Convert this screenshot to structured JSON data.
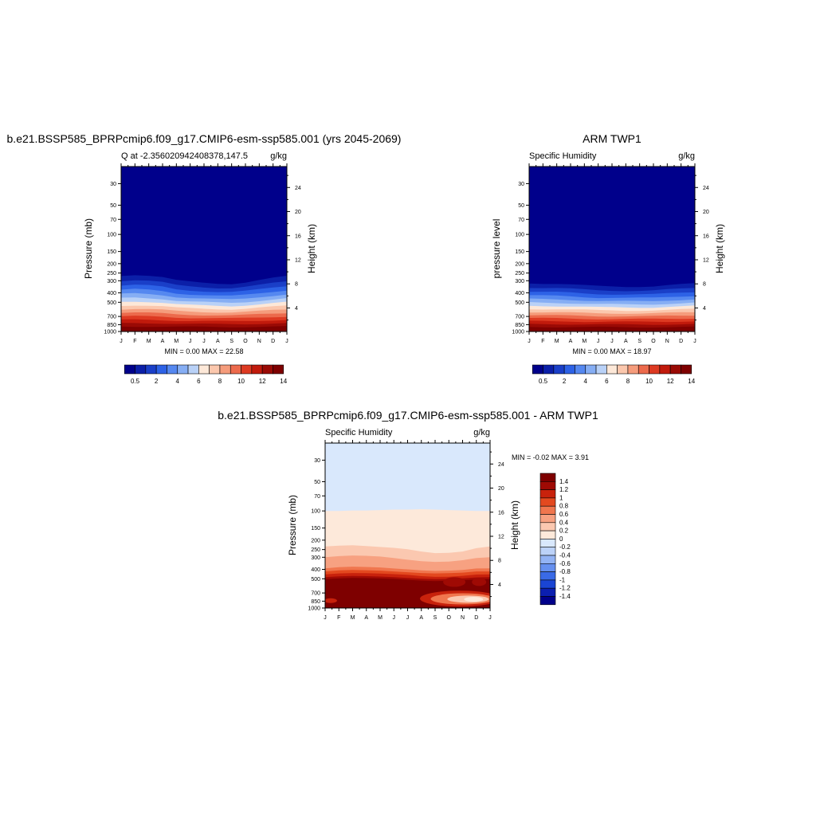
{
  "colors": {
    "abs_palette": [
      "#00008b",
      "#0b1fa8",
      "#1a3fc8",
      "#2d62e6",
      "#5588f0",
      "#86aef4",
      "#b9d1f7",
      "#fde8d8",
      "#fbc7ad",
      "#f59c7c",
      "#ec6a4c",
      "#dd3a22",
      "#c11a0c",
      "#9a0a05",
      "#7e0000"
    ],
    "diff_palette": [
      "#00008b",
      "#0b1fb0",
      "#1a45d4",
      "#3a6ae6",
      "#6690ef",
      "#93b3f4",
      "#bcd2f8",
      "#d9e8fc",
      "#fde9da",
      "#fbc8b0",
      "#f7a181",
      "#f0764e",
      "#e3491f",
      "#c8220c",
      "#9f0a04",
      "#7e0000"
    ],
    "axis": "#000000"
  },
  "panels": {
    "model": {
      "title": "b.e21.BSSP585_BPRPcmip6.f09_g17.CMIP6-esm-ssp585.001 (yrs 2045-2069)",
      "left_string": "Q at -2.356020942408378,147.5",
      "right_string": "g/kg",
      "ylabel": "Pressure (mb)",
      "ylabel_right": "Height (km)",
      "stats": "MIN =   0.00 MAX =  22.58"
    },
    "obs": {
      "title": "ARM TWP1",
      "left_string": "Specific Humidity",
      "right_string": "g/kg",
      "ylabel": "pressure level",
      "ylabel_right": "Height (km)",
      "stats": "MIN =   0.00 MAX =  18.97"
    },
    "diff": {
      "title": "b.e21.BSSP585_BPRPcmip6.f09_g17.CMIP6-esm-ssp585.001 - ARM TWP1",
      "left_string": "Specific Humidity",
      "right_string": "g/kg",
      "ylabel": "Pressure (mb)",
      "ylabel_right": "Height (km)",
      "stats": "MIN =  -0.02 MAX =   3.91"
    }
  },
  "chart_data": [
    {
      "type": "heatmap",
      "title": "b.e21.BSSP585_BPRPcmip6.f09_g17.CMIP6-esm-ssp585.001 (yrs 2045-2069)",
      "ylabel": "Pressure (mb)",
      "ylabel_right": "Height (km)",
      "x_ticks": [
        "J",
        "F",
        "M",
        "A",
        "M",
        "J",
        "J",
        "A",
        "S",
        "O",
        "N",
        "D",
        "J"
      ],
      "y_ticks": [
        30,
        50,
        70,
        100,
        150,
        200,
        250,
        300,
        400,
        500,
        700,
        850,
        1000
      ],
      "y_ticks_right": [
        24,
        20,
        16,
        12,
        8,
        4
      ],
      "ylim": [
        1000,
        20
      ],
      "units": "g/kg",
      "min": 0.0,
      "max": 22.58,
      "colorbar_labels": [
        "0.5",
        "2",
        "4",
        "6",
        "8",
        "10",
        "12",
        "14"
      ],
      "levels": [
        0.5,
        1,
        2,
        3,
        4,
        5,
        6,
        7,
        8,
        9,
        10,
        11,
        12,
        13,
        14
      ],
      "moist_top_pressure": [
        225,
        220,
        225,
        235,
        255,
        265,
        272,
        278,
        280,
        270,
        255,
        240,
        228
      ]
    },
    {
      "type": "heatmap",
      "title": "ARM TWP1",
      "ylabel": "pressure level",
      "ylabel_right": "Height (km)",
      "x_ticks": [
        "J",
        "F",
        "M",
        "A",
        "M",
        "J",
        "J",
        "A",
        "S",
        "O",
        "N",
        "D",
        "J"
      ],
      "y_ticks": [
        30,
        50,
        70,
        100,
        150,
        200,
        250,
        300,
        400,
        500,
        700,
        850,
        1000
      ],
      "y_ticks_right": [
        24,
        20,
        16,
        12,
        8,
        4
      ],
      "ylim": [
        1000,
        20
      ],
      "units": "g/kg",
      "min": 0.0,
      "max": 18.97,
      "colorbar_labels": [
        "0.5",
        "2",
        "4",
        "6",
        "8",
        "10",
        "12",
        "14"
      ],
      "levels": [
        0.5,
        1,
        2,
        3,
        4,
        5,
        6,
        7,
        8,
        9,
        10,
        11,
        12,
        13,
        14
      ],
      "moist_top_pressure": [
        275,
        278,
        280,
        285,
        292,
        298,
        300,
        302,
        302,
        300,
        292,
        285,
        278
      ]
    },
    {
      "type": "heatmap",
      "title": "b.e21.BSSP585_BPRPcmip6.f09_g17.CMIP6-esm-ssp585.001 - ARM TWP1",
      "ylabel": "Pressure (mb)",
      "ylabel_right": "Height (km)",
      "x_ticks": [
        "J",
        "F",
        "M",
        "A",
        "M",
        "J",
        "J",
        "A",
        "S",
        "O",
        "N",
        "D",
        "J"
      ],
      "y_ticks": [
        30,
        50,
        70,
        100,
        150,
        200,
        250,
        300,
        400,
        500,
        700,
        850,
        1000
      ],
      "y_ticks_right": [
        24,
        20,
        16,
        12,
        8,
        4
      ],
      "ylim": [
        1000,
        20
      ],
      "units": "g/kg",
      "min": -0.02,
      "max": 3.91,
      "colorbar_labels": [
        "1.4",
        "1.2",
        "1",
        "0.8",
        "0.6",
        "0.4",
        "0.2",
        "0",
        "-0.2",
        "-0.4",
        "-0.6",
        "-0.8",
        "-1",
        "-1.2",
        "-1.4"
      ],
      "levels": [
        -1.4,
        -1.2,
        -1.0,
        -0.8,
        -0.6,
        -0.4,
        -0.2,
        0,
        0.2,
        0.4,
        0.6,
        0.8,
        1.0,
        1.2,
        1.4
      ]
    }
  ]
}
